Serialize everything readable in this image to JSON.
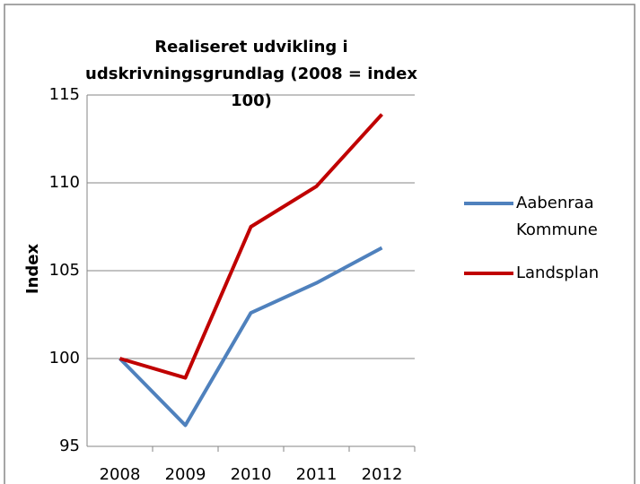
{
  "chart_data": {
    "type": "line",
    "title": "Realiseret udvikling i udskrivningsgrundlag (2008 = index 100)",
    "y_label": "Index",
    "categories": [
      "2008",
      "2009",
      "2010",
      "2011",
      "2012"
    ],
    "series": [
      {
        "name": "Aabenraa Kommune",
        "color": "#4f81bd",
        "values": [
          100,
          96.2,
          102.6,
          104.3,
          106.3
        ]
      },
      {
        "name": "Landsplan",
        "color": "#c00000",
        "values": [
          100,
          98.9,
          107.5,
          109.8,
          113.9
        ]
      }
    ],
    "ylim": [
      95,
      115
    ],
    "yticks": [
      95,
      100,
      105,
      110,
      115
    ],
    "grid": true,
    "legend": "right"
  }
}
